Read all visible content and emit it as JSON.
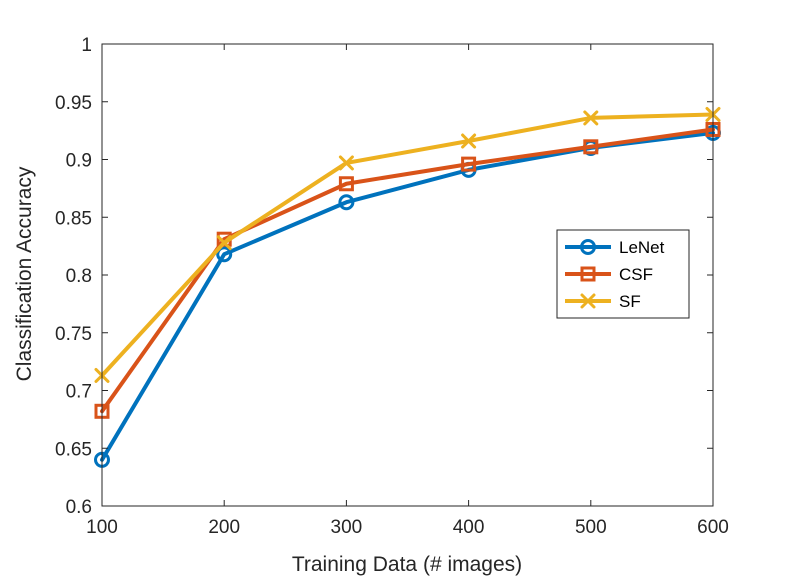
{
  "chart_data": {
    "type": "line",
    "title": "",
    "xlabel": "Training Data (# images)",
    "ylabel": "Classification Accuracy",
    "x": [
      100,
      200,
      300,
      400,
      500,
      600
    ],
    "xlim": [
      100,
      600
    ],
    "ylim": [
      0.6,
      1.0
    ],
    "xticks": [
      "100",
      "200",
      "300",
      "400",
      "500",
      "600"
    ],
    "yticks": [
      "0.6",
      "0.65",
      "0.7",
      "0.75",
      "0.8",
      "0.85",
      "0.9",
      "0.95",
      "1"
    ],
    "grid": false,
    "legend_position": "right",
    "series": [
      {
        "name": "LeNet",
        "marker": "circle",
        "color": "#0072BD",
        "values": [
          0.64,
          0.818,
          0.863,
          0.891,
          0.91,
          0.923
        ]
      },
      {
        "name": "CSF",
        "marker": "square",
        "color": "#D95319",
        "values": [
          0.682,
          0.831,
          0.879,
          0.896,
          0.911,
          0.926
        ]
      },
      {
        "name": "SF",
        "marker": "x",
        "color": "#EDB120",
        "values": [
          0.713,
          0.828,
          0.897,
          0.916,
          0.936,
          0.939
        ]
      }
    ]
  }
}
